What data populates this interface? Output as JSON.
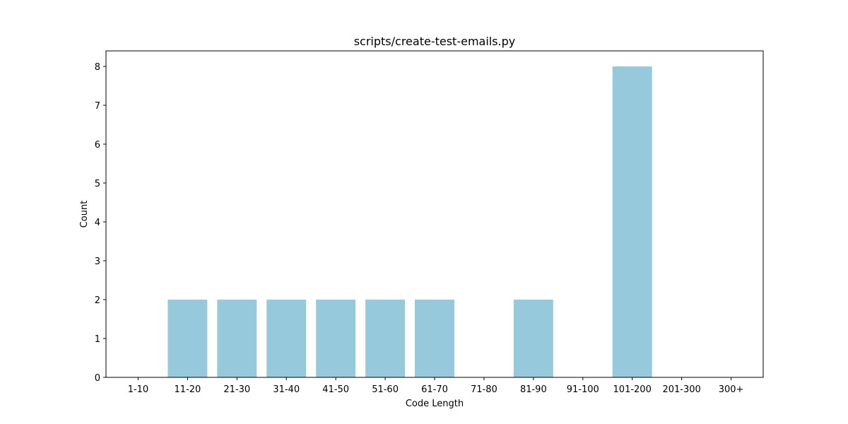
{
  "chart_data": {
    "type": "bar",
    "title": "scripts/create-test-emails.py",
    "xlabel": "Code Length",
    "ylabel": "Count",
    "categories": [
      "1-10",
      "11-20",
      "21-30",
      "31-40",
      "41-50",
      "51-60",
      "61-70",
      "71-80",
      "81-90",
      "91-100",
      "101-200",
      "201-300",
      "300+"
    ],
    "values": [
      0,
      2,
      2,
      2,
      2,
      2,
      2,
      0,
      2,
      0,
      8,
      0,
      0
    ],
    "ylim": [
      0,
      8.4
    ],
    "yticks": [
      "0",
      "1",
      "2",
      "3",
      "4",
      "5",
      "6",
      "7",
      "8"
    ],
    "grid": false,
    "legend": "none",
    "bar_color": "#96c9dc",
    "axis_color": "#000000"
  }
}
